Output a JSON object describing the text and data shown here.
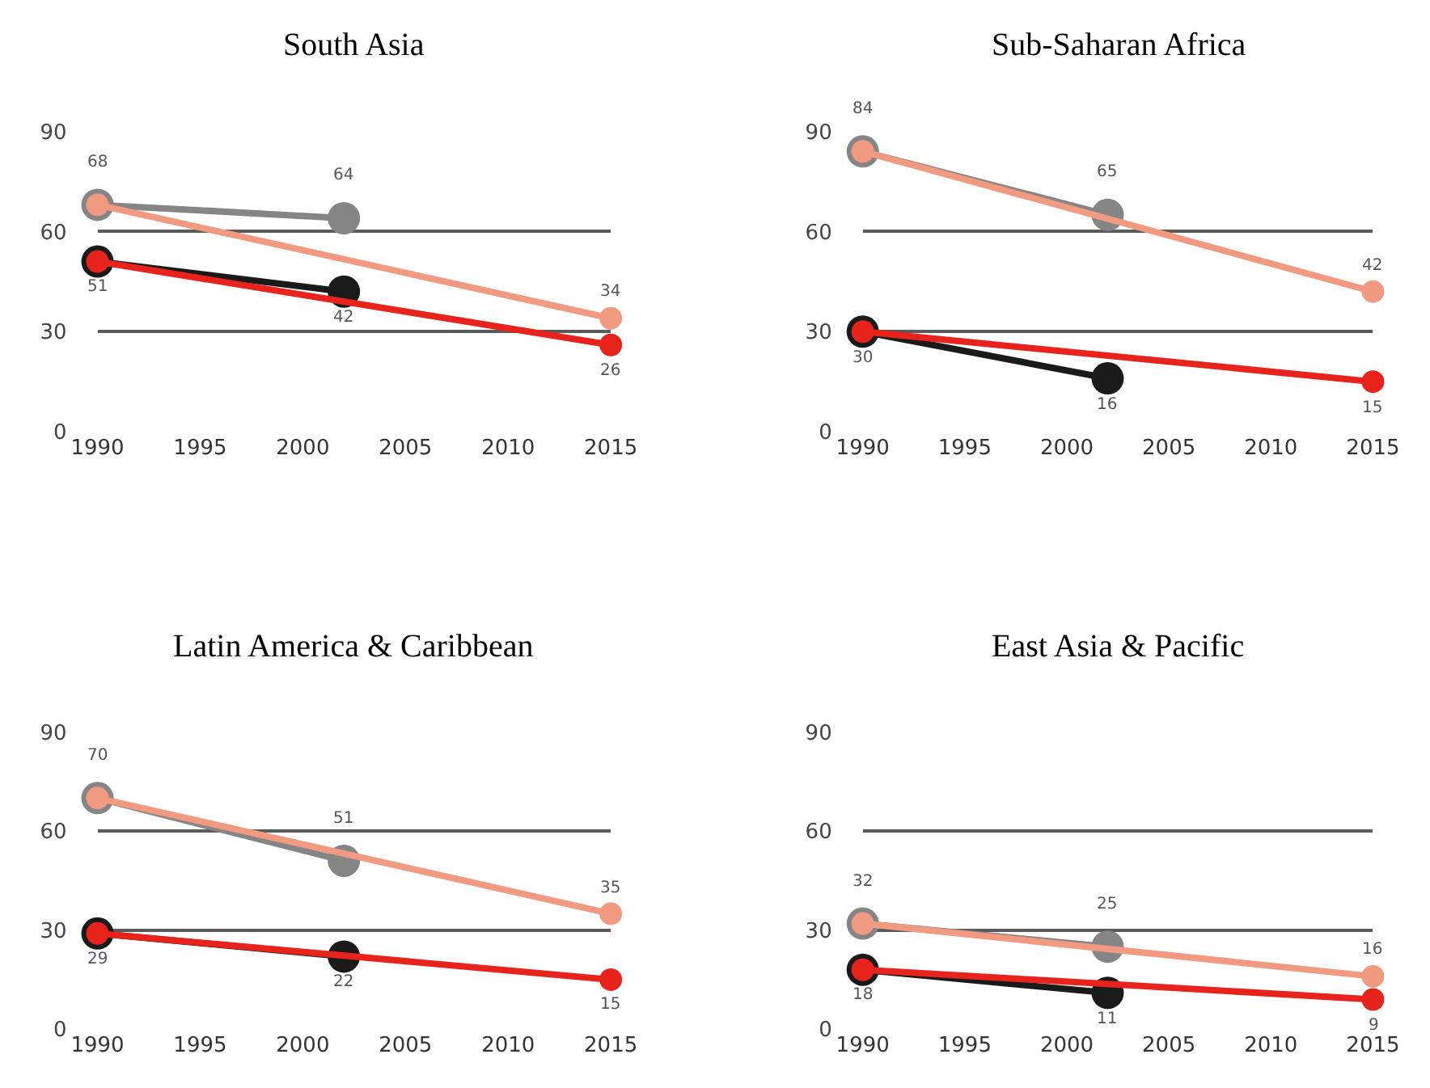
{
  "chart_data": [
    {
      "type": "line",
      "title": "South Asia",
      "xlim": [
        1990,
        2015
      ],
      "xticks": [
        1990,
        1995,
        2000,
        2005,
        2010,
        2015
      ],
      "ylim": [
        0,
        90
      ],
      "yticks": [
        0,
        30,
        60,
        90
      ],
      "grid": "y",
      "marker": "circle",
      "series": [
        {
          "color": "#858585",
          "x": [
            1990,
            2002
          ],
          "values": [
            68,
            64
          ],
          "value_labels": [
            "68",
            "64"
          ]
        },
        {
          "color": "#f29a80",
          "x": [
            1990,
            2015
          ],
          "values": [
            68,
            34
          ],
          "value_labels": [
            null,
            "34"
          ]
        },
        {
          "color": "#1a1a1a",
          "x": [
            1990,
            2002
          ],
          "values": [
            51,
            42
          ],
          "value_labels": [
            "51",
            "42"
          ]
        },
        {
          "color": "#e8231c",
          "x": [
            1990,
            2015
          ],
          "values": [
            51,
            26
          ],
          "value_labels": [
            null,
            "26"
          ]
        }
      ]
    },
    {
      "type": "line",
      "title": "Sub-Saharan Africa",
      "xlim": [
        1990,
        2015
      ],
      "xticks": [
        1990,
        1995,
        2000,
        2005,
        2010,
        2015
      ],
      "ylim": [
        0,
        90
      ],
      "yticks": [
        0,
        30,
        60,
        90
      ],
      "grid": "y",
      "marker": "circle",
      "series": [
        {
          "color": "#858585",
          "x": [
            1990,
            2002
          ],
          "values": [
            84,
            65
          ],
          "value_labels": [
            "84",
            "65"
          ]
        },
        {
          "color": "#f29a80",
          "x": [
            1990,
            2015
          ],
          "values": [
            84,
            42
          ],
          "value_labels": [
            null,
            "42"
          ]
        },
        {
          "color": "#1a1a1a",
          "x": [
            1990,
            2002
          ],
          "values": [
            30,
            16
          ],
          "value_labels": [
            "30",
            "16"
          ]
        },
        {
          "color": "#e8231c",
          "x": [
            1990,
            2015
          ],
          "values": [
            30,
            15
          ],
          "value_labels": [
            null,
            "15"
          ]
        }
      ]
    },
    {
      "type": "line",
      "title": "Latin America & Caribbean",
      "xlim": [
        1990,
        2015
      ],
      "xticks": [
        1990,
        1995,
        2000,
        2005,
        2010,
        2015
      ],
      "ylim": [
        0,
        90
      ],
      "yticks": [
        0,
        30,
        60,
        90
      ],
      "grid": "y",
      "marker": "circle",
      "series": [
        {
          "color": "#858585",
          "x": [
            1990,
            2002
          ],
          "values": [
            70,
            51
          ],
          "value_labels": [
            "70",
            "51"
          ]
        },
        {
          "color": "#f29a80",
          "x": [
            1990,
            2015
          ],
          "values": [
            70,
            35
          ],
          "value_labels": [
            null,
            "35"
          ]
        },
        {
          "color": "#1a1a1a",
          "x": [
            1990,
            2002
          ],
          "values": [
            29,
            22
          ],
          "value_labels": [
            "29",
            "22"
          ]
        },
        {
          "color": "#e8231c",
          "x": [
            1990,
            2015
          ],
          "values": [
            29,
            15
          ],
          "value_labels": [
            null,
            "15"
          ]
        }
      ]
    },
    {
      "type": "line",
      "title": "East Asia & Pacific",
      "xlim": [
        1990,
        2015
      ],
      "xticks": [
        1990,
        1995,
        2000,
        2005,
        2010,
        2015
      ],
      "ylim": [
        0,
        90
      ],
      "yticks": [
        0,
        30,
        60,
        90
      ],
      "grid": "y",
      "marker": "circle",
      "series": [
        {
          "color": "#858585",
          "x": [
            1990,
            2002
          ],
          "values": [
            32,
            25
          ],
          "value_labels": [
            "32",
            "25"
          ]
        },
        {
          "color": "#f29a80",
          "x": [
            1990,
            2015
          ],
          "values": [
            32,
            16
          ],
          "value_labels": [
            null,
            "16"
          ]
        },
        {
          "color": "#1a1a1a",
          "x": [
            1990,
            2002
          ],
          "values": [
            18,
            11
          ],
          "value_labels": [
            "18",
            "11"
          ]
        },
        {
          "color": "#e8231c",
          "x": [
            1990,
            2015
          ],
          "values": [
            18,
            9
          ],
          "value_labels": [
            null,
            "9"
          ]
        }
      ]
    }
  ]
}
